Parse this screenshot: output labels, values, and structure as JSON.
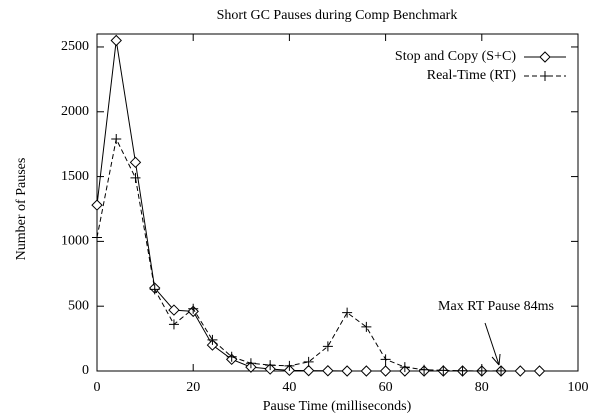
{
  "chart_data": {
    "type": "line",
    "title": "Short GC Pauses during Comp Benchmark",
    "xlabel": "Pause Time (milliseconds)",
    "ylabel": "Number of Pauses",
    "x": [
      0,
      4,
      8,
      12,
      16,
      20,
      24,
      28,
      32,
      36,
      40,
      44,
      48,
      52,
      56,
      60,
      64,
      68,
      72,
      76,
      80,
      84,
      88,
      92
    ],
    "series": [
      {
        "name": "Stop and Copy (S+C)",
        "color": "#000000",
        "marker": "diamond",
        "dash": "solid",
        "values": [
          1280,
          2550,
          1610,
          640,
          470,
          460,
          200,
          90,
          30,
          15,
          5,
          3,
          2,
          0,
          0,
          0,
          0,
          0,
          0,
          0,
          0,
          0,
          0,
          0
        ]
      },
      {
        "name": "Real-Time (RT)",
        "color": "#000000",
        "marker": "plus",
        "dash": "dashed",
        "values": [
          1030,
          1790,
          1490,
          630,
          360,
          480,
          240,
          110,
          60,
          45,
          40,
          70,
          190,
          450,
          340,
          90,
          30,
          10,
          5,
          2,
          1,
          1,
          null,
          null
        ]
      }
    ],
    "annotation": {
      "text": "Max RT Pause 84ms",
      "x": 84
    },
    "xlim": [
      0,
      100
    ],
    "xticks": [
      0,
      20,
      40,
      60,
      80,
      100
    ],
    "ylim": [
      0,
      2600
    ],
    "yticks": [
      0,
      500,
      1000,
      1500,
      2000,
      2500
    ],
    "legend": "top-right"
  }
}
